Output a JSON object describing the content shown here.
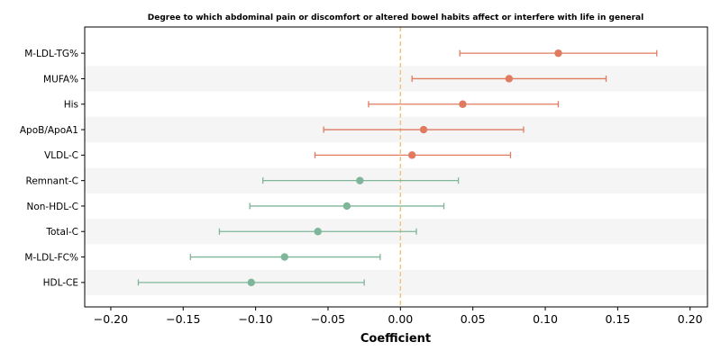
{
  "chart_data": {
    "type": "forest",
    "title": "Degree to which abdominal pain or discomfort or altered bowel habits affect or interfere with life in general",
    "xlabel": "Coefficient",
    "ylabel": "",
    "xlim": [
      -0.218,
      0.212
    ],
    "xticks": [
      -0.2,
      -0.15,
      -0.1,
      -0.05,
      0.0,
      0.05,
      0.1,
      0.15,
      0.2
    ],
    "xtick_labels": [
      "−0.20",
      "−0.15",
      "−0.10",
      "−0.05",
      "0.00",
      "0.05",
      "0.10",
      "0.15",
      "0.20"
    ],
    "reference_line": 0.0,
    "grid": false,
    "alternating_row_bands": true,
    "colors": {
      "positive": "#e07b5f",
      "negative": "#7fb69a",
      "reference": "#f0c27a",
      "band": "#f5f5f5"
    },
    "items": [
      {
        "label": "M-LDL-TG%",
        "coef": 0.109,
        "lower": 0.041,
        "upper": 0.177
      },
      {
        "label": "MUFA%",
        "coef": 0.075,
        "lower": 0.008,
        "upper": 0.142
      },
      {
        "label": "His",
        "coef": 0.043,
        "lower": -0.022,
        "upper": 0.109
      },
      {
        "label": "ApoB/ApoA1",
        "coef": 0.016,
        "lower": -0.053,
        "upper": 0.085
      },
      {
        "label": "VLDL-C",
        "coef": 0.008,
        "lower": -0.059,
        "upper": 0.076
      },
      {
        "label": "Remnant-C",
        "coef": -0.028,
        "lower": -0.095,
        "upper": 0.04
      },
      {
        "label": "Non-HDL-C",
        "coef": -0.037,
        "lower": -0.104,
        "upper": 0.03
      },
      {
        "label": "Total-C",
        "coef": -0.057,
        "lower": -0.125,
        "upper": 0.011
      },
      {
        "label": "M-LDL-FC%",
        "coef": -0.08,
        "lower": -0.145,
        "upper": -0.014
      },
      {
        "label": "HDL-CE",
        "coef": -0.103,
        "lower": -0.181,
        "upper": -0.025
      }
    ]
  }
}
